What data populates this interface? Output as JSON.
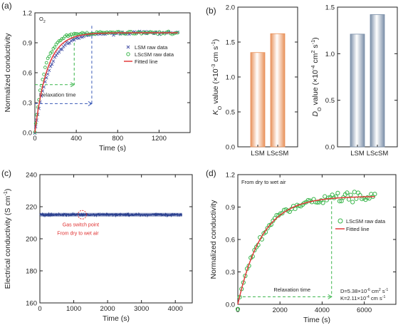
{
  "chart_data": [
    {
      "panel_label": "(a)",
      "type": "scatter",
      "annotation": "O₂",
      "xlabel": "Time (s)",
      "ylabel": "Normalized conductivity",
      "xlim": [
        0,
        1500
      ],
      "ylim": [
        0,
        1.2
      ],
      "xticks": [
        "0",
        "400",
        "800",
        "1200"
      ],
      "yticks": [
        "0.0",
        "0.3",
        "0.6",
        "0.9",
        "1.2"
      ],
      "legend_position": "right",
      "relaxation_label": "Relaxation time",
      "series": [
        {
          "name": "LSM raw data",
          "marker": "x",
          "color": "#4a55a8",
          "tau": 140,
          "noise": 0.012,
          "t_max": 1380,
          "n": 90
        },
        {
          "name": "LScSM raw data",
          "marker": "o",
          "color": "#39b54a",
          "tau": 95,
          "noise": 0.014,
          "t_max": 1380,
          "n": 90
        },
        {
          "name": "Fitted line",
          "marker": "line",
          "color": "#e23b3b",
          "tau": 120,
          "t_max": 1380
        }
      ],
      "relaxation": {
        "green_t": 380,
        "green_y": 0.48,
        "blue_t": 550,
        "blue_y": 0.29
      }
    },
    {
      "panel_label": "(b)",
      "type": "bar",
      "categories": [
        "LSM",
        "LScSM"
      ],
      "values": [
        1.35,
        1.62
      ],
      "ylabel": "K_O value (×10⁻³ cm s⁻¹)",
      "ylabel_main": "K",
      "ylabel_sub": "O",
      "ylabel_rest": " value (×10",
      "ylabel_exp": "-3",
      "ylabel_unit": " cm s",
      "ylabel_unit_exp": "-1",
      "ylabel_close": ")",
      "ylim": [
        0,
        2.0
      ],
      "yticks": [
        "0.0",
        "0.5",
        "1.0",
        "1.5",
        "2.0"
      ],
      "bar_color": "#e8915a"
    },
    {
      "type": "bar",
      "categories": [
        "LSM",
        "LScSM"
      ],
      "values": [
        1.21,
        1.42
      ],
      "ylabel": "D_O value (×10⁻⁴ cm² s⁻¹)",
      "ylabel_main": "D",
      "ylabel_sub": "O",
      "ylabel_rest": " value (×10",
      "ylabel_exp": "-4",
      "ylabel_unit": " cm",
      "ylabel_unit_exp": "2",
      "ylabel_unit2": " s",
      "ylabel_unit2_exp": "-1",
      "ylabel_close": ")",
      "ylim": [
        0,
        1.5
      ],
      "yticks": [
        "0.0",
        "0.5",
        "1.0",
        "1.5"
      ],
      "bar_color": "#7b8fa8"
    },
    {
      "panel_label": "(c)",
      "type": "line",
      "xlabel": "Time (s)",
      "ylabel": "Electrical conductivity (S cm⁻¹)",
      "ylabel_main": "Electrical conductivity (S cm",
      "ylabel_exp": "-1",
      "ylabel_close": ")",
      "xlim": [
        0,
        4500
      ],
      "ylim": [
        160,
        240
      ],
      "xticks": [
        "0",
        "1000",
        "2000",
        "3000",
        "4000"
      ],
      "yticks": [
        "160",
        "180",
        "200",
        "220",
        "240"
      ],
      "value": 215,
      "t_max": 4200,
      "color": "#2a3f8f",
      "switch_point_t": 1250,
      "switch_label_1": "Gas switch point",
      "switch_label_2": "From dry to wet air"
    },
    {
      "panel_label": "(d)",
      "type": "scatter",
      "annotation": "From dry to wet air",
      "xlabel": "Time (s)",
      "ylabel": "Normalized conductivity",
      "xlim": [
        0,
        7500
      ],
      "ylim": [
        0,
        1.2
      ],
      "xticks": [
        "0",
        "2000",
        "4000",
        "6000"
      ],
      "yticks": [
        "0.0",
        "0.3",
        "0.6",
        "0.9",
        "1.2"
      ],
      "legend_position": "right",
      "relaxation_label": "Relaxation time",
      "series": [
        {
          "name": "LScSM raw data",
          "marker": "o",
          "color": "#39b54a",
          "tau": 1150,
          "noise": 0.04,
          "t_max": 6500,
          "n": 75
        },
        {
          "name": "Fitted line",
          "marker": "line",
          "color": "#e23b3b",
          "tau": 1150,
          "t_max": 6500
        }
      ],
      "relaxation_t": 4450,
      "relaxation_y": 0.07,
      "D_text": "D=5.38×10",
      "D_exp": "-6",
      "D_unit": " cm",
      "D_unit_exp": "2",
      "D_unit2": " s",
      "D_unit2_exp": "-1",
      "K_text": "K=2.11×10",
      "K_exp": "-4",
      "K_unit": " cm s",
      "K_unit_exp": "-1"
    }
  ]
}
